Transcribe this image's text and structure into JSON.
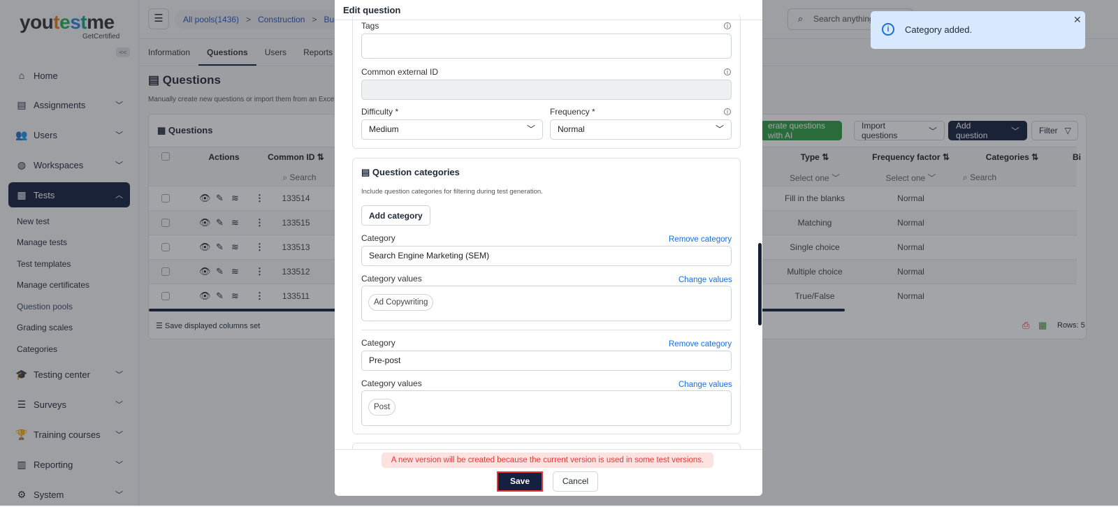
{
  "brand": {
    "name_a": "you",
    "name_b": "t",
    "name_c": "e",
    "name_d": "s",
    "name_e": "t",
    "name_f": "me",
    "tagline": "GetCertified"
  },
  "sidebar": {
    "collapse": "<<",
    "items": [
      {
        "label": "Home",
        "icon": "home-icon"
      },
      {
        "label": "Assignments",
        "icon": "document-icon"
      },
      {
        "label": "Users",
        "icon": "users-icon"
      },
      {
        "label": "Workspaces",
        "icon": "globe-icon"
      },
      {
        "label": "Tests",
        "icon": "test-icon",
        "active": true
      },
      {
        "label": "Testing center",
        "icon": "graduation-cap-icon"
      },
      {
        "label": "Surveys",
        "icon": "list-icon"
      },
      {
        "label": "Training courses",
        "icon": "trophy-icon"
      },
      {
        "label": "Reporting",
        "icon": "report-icon"
      },
      {
        "label": "System",
        "icon": "gear-icon"
      }
    ],
    "subitems": [
      "New test",
      "Manage tests",
      "Test templates",
      "Manage certificates",
      "Question pools",
      "Grading scales",
      "Categories"
    ]
  },
  "header": {
    "breadcrumbs": [
      "All pools(1436)",
      "Construction",
      "Buil"
    ],
    "search_placeholder": "Search anything"
  },
  "tabs": [
    "Information",
    "Questions",
    "Users",
    "Reports"
  ],
  "page": {
    "title": "Questions",
    "description": "Manually create new questions or import them from an Excel"
  },
  "card": {
    "title": "Questions",
    "buttons": {
      "ai": "erate questions with AI",
      "import": "Import questions",
      "add": "Add question",
      "filter": "Filter"
    },
    "columns": {
      "actions": "Actions",
      "common_id": "Common ID",
      "type": "Type",
      "frequency": "Frequency factor",
      "categories": "Categories",
      "bi": "Bi"
    },
    "filters": {
      "search": "Search",
      "select": "Select one"
    },
    "rows": [
      {
        "id": "133514",
        "type": "Fill in the blanks",
        "freq": "Normal"
      },
      {
        "id": "133515",
        "type": "Matching",
        "freq": "Normal"
      },
      {
        "id": "133513",
        "type": "Single choice",
        "freq": "Normal"
      },
      {
        "id": "133512",
        "type": "Multiple choice",
        "freq": "Normal"
      },
      {
        "id": "133511",
        "type": "True/False",
        "freq": "Normal"
      }
    ],
    "save_columns": "Save displayed columns set",
    "rows_count": "Rows: 5"
  },
  "toast": {
    "message": "Category added."
  },
  "modal": {
    "title": "Edit question",
    "tags_label": "Tags",
    "tags_value": "",
    "external_id_label": "Common external ID",
    "difficulty_label": "Difficulty *",
    "difficulty_value": "Medium",
    "frequency_label": "Frequency *",
    "frequency_value": "Normal",
    "categories_title": "Question categories",
    "categories_desc": "Include question categories for filtering during test generation.",
    "add_category": "Add category",
    "category_label": "Category",
    "values_label": "Category values",
    "remove": "Remove category",
    "change": "Change values",
    "categories": [
      {
        "name": "Search Engine Marketing (SEM)",
        "values": [
          "Ad Copywriting"
        ]
      },
      {
        "name": "Pre-post",
        "values": [
          "Post"
        ]
      }
    ],
    "warning": "A new version will be created because the current version is used in some test versions.",
    "save": "Save",
    "cancel": "Cancel"
  },
  "colors": {
    "navy": "#14203f",
    "green": "#2e9e44",
    "link": "#1a6fe0",
    "warning_bg": "#fde2e2",
    "warning_text": "#e53935",
    "toast_bg": "#d8e8fd"
  }
}
